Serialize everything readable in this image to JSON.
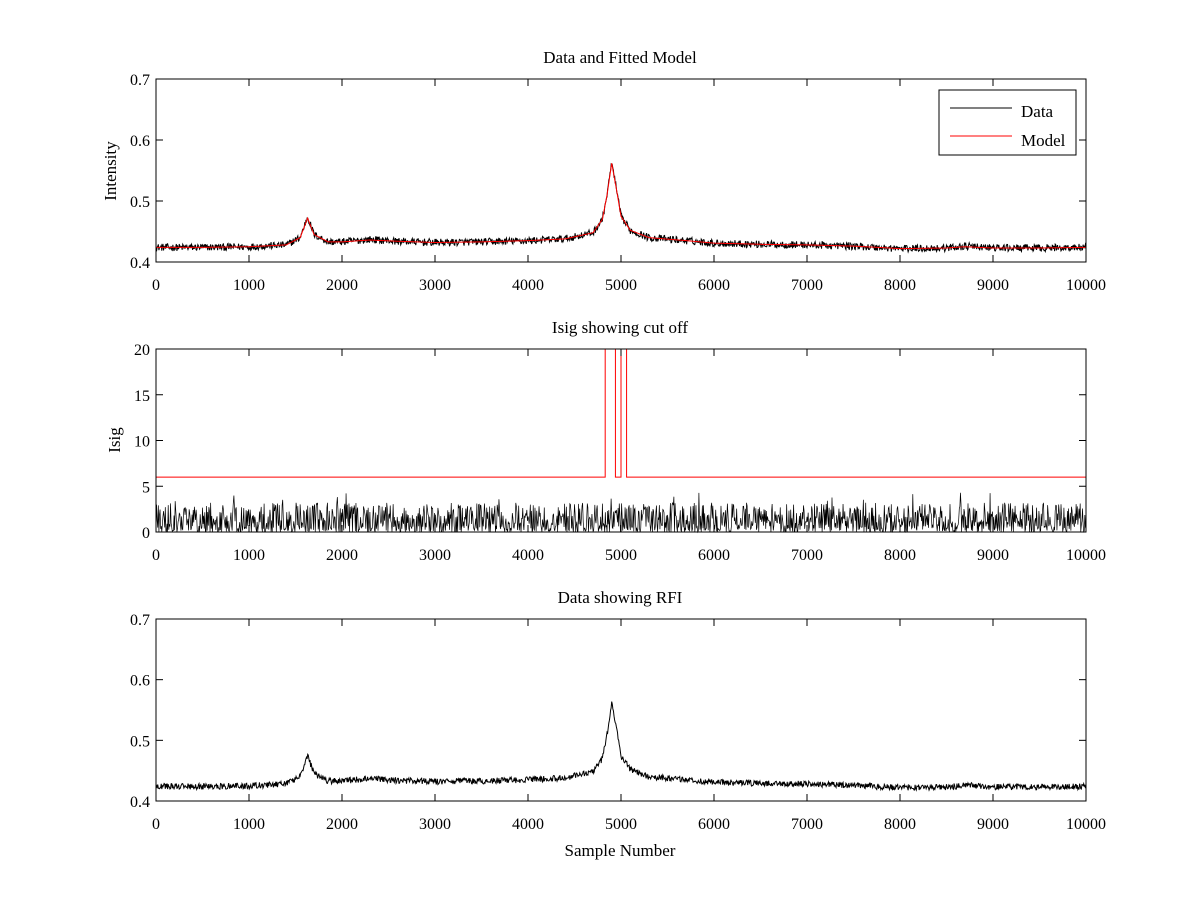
{
  "chart_data": [
    {
      "type": "line",
      "title": "Data and Fitted Model",
      "xlabel": "",
      "ylabel": "Intensity",
      "xlim": [
        0,
        10000
      ],
      "ylim": [
        0.4,
        0.7
      ],
      "xticks": [
        0,
        1000,
        2000,
        3000,
        4000,
        5000,
        6000,
        7000,
        8000,
        9000,
        10000
      ],
      "yticks": [
        0.4,
        0.5,
        0.6,
        0.7
      ],
      "grid": false,
      "legend": {
        "position": "top-right",
        "entries": [
          "Data",
          "Model"
        ]
      },
      "series": [
        {
          "name": "Data",
          "color": "#000000",
          "noise_amplitude": 0.006,
          "x": [
            0,
            500,
            1000,
            1400,
            1550,
            1630,
            1700,
            1850,
            2000,
            2300,
            2600,
            3000,
            3500,
            4000,
            4400,
            4700,
            4800,
            4850,
            4900,
            4950,
            5000,
            5100,
            5300,
            5700,
            6000,
            6500,
            7000,
            7500,
            8000,
            8500,
            8700,
            9000,
            9500,
            10000
          ],
          "y": [
            0.424,
            0.424,
            0.425,
            0.428,
            0.44,
            0.474,
            0.445,
            0.433,
            0.433,
            0.437,
            0.434,
            0.432,
            0.433,
            0.435,
            0.438,
            0.448,
            0.47,
            0.51,
            0.563,
            0.52,
            0.475,
            0.452,
            0.44,
            0.435,
            0.431,
            0.429,
            0.428,
            0.426,
            0.422,
            0.423,
            0.426,
            0.423,
            0.423,
            0.424
          ]
        },
        {
          "name": "Model",
          "color": "#ff0000",
          "x": [
            0,
            500,
            1000,
            1400,
            1550,
            1630,
            1700,
            1850,
            2000,
            2300,
            2600,
            3000,
            3500,
            4000,
            4400,
            4700,
            4800,
            4850,
            4900,
            4950,
            5000,
            5100,
            5300,
            5700,
            6000,
            6500,
            7000,
            7500,
            8000,
            8500,
            8700,
            9000,
            9500,
            10000
          ],
          "y": [
            0.424,
            0.424,
            0.425,
            0.428,
            0.44,
            0.472,
            0.445,
            0.433,
            0.433,
            0.436,
            0.434,
            0.432,
            0.433,
            0.435,
            0.438,
            0.448,
            0.47,
            0.51,
            0.562,
            0.52,
            0.475,
            0.452,
            0.44,
            0.435,
            0.431,
            0.429,
            0.428,
            0.426,
            0.422,
            0.423,
            0.425,
            0.423,
            0.423,
            0.424
          ]
        }
      ]
    },
    {
      "type": "line",
      "title": "Isig showing cut off",
      "xlabel": "",
      "ylabel": "Isig",
      "xlim": [
        0,
        10000
      ],
      "ylim": [
        0,
        20
      ],
      "xticks": [
        0,
        1000,
        2000,
        3000,
        4000,
        5000,
        6000,
        7000,
        8000,
        9000,
        10000
      ],
      "yticks": [
        0,
        5,
        10,
        15,
        20
      ],
      "grid": false,
      "series": [
        {
          "color": "#000000",
          "noise_amplitude": 4.0,
          "x": [
            0,
            10000
          ],
          "y": [
            0,
            0
          ]
        },
        {
          "color": "#ff0000",
          "x": [
            0,
            4830,
            4830,
            4940,
            4940,
            5000,
            5000,
            5060,
            5060,
            10000
          ],
          "y": [
            6,
            6,
            20,
            20,
            6,
            6,
            20,
            20,
            6,
            6
          ]
        }
      ]
    },
    {
      "type": "line",
      "title": "Data showing RFI",
      "xlabel": "Sample Number",
      "ylabel": "",
      "xlim": [
        0,
        10000
      ],
      "ylim": [
        0.4,
        0.7
      ],
      "xticks": [
        0,
        1000,
        2000,
        3000,
        4000,
        5000,
        6000,
        7000,
        8000,
        9000,
        10000
      ],
      "yticks": [
        0.4,
        0.5,
        0.6,
        0.7
      ],
      "grid": false,
      "series": [
        {
          "color": "#000000",
          "noise_amplitude": 0.005,
          "x": [
            0,
            500,
            1000,
            1400,
            1550,
            1630,
            1700,
            1850,
            2000,
            2300,
            2600,
            3000,
            3500,
            4000,
            4400,
            4700,
            4800,
            4850,
            4900,
            4950,
            5000,
            5100,
            5300,
            5700,
            6000,
            6500,
            7000,
            7500,
            8000,
            8500,
            8700,
            9000,
            9500,
            10000
          ],
          "y": [
            0.424,
            0.424,
            0.425,
            0.428,
            0.44,
            0.474,
            0.445,
            0.433,
            0.433,
            0.437,
            0.434,
            0.432,
            0.433,
            0.435,
            0.438,
            0.448,
            0.47,
            0.51,
            0.563,
            0.52,
            0.475,
            0.452,
            0.44,
            0.435,
            0.431,
            0.429,
            0.428,
            0.426,
            0.422,
            0.423,
            0.426,
            0.423,
            0.423,
            0.424
          ]
        }
      ]
    }
  ]
}
